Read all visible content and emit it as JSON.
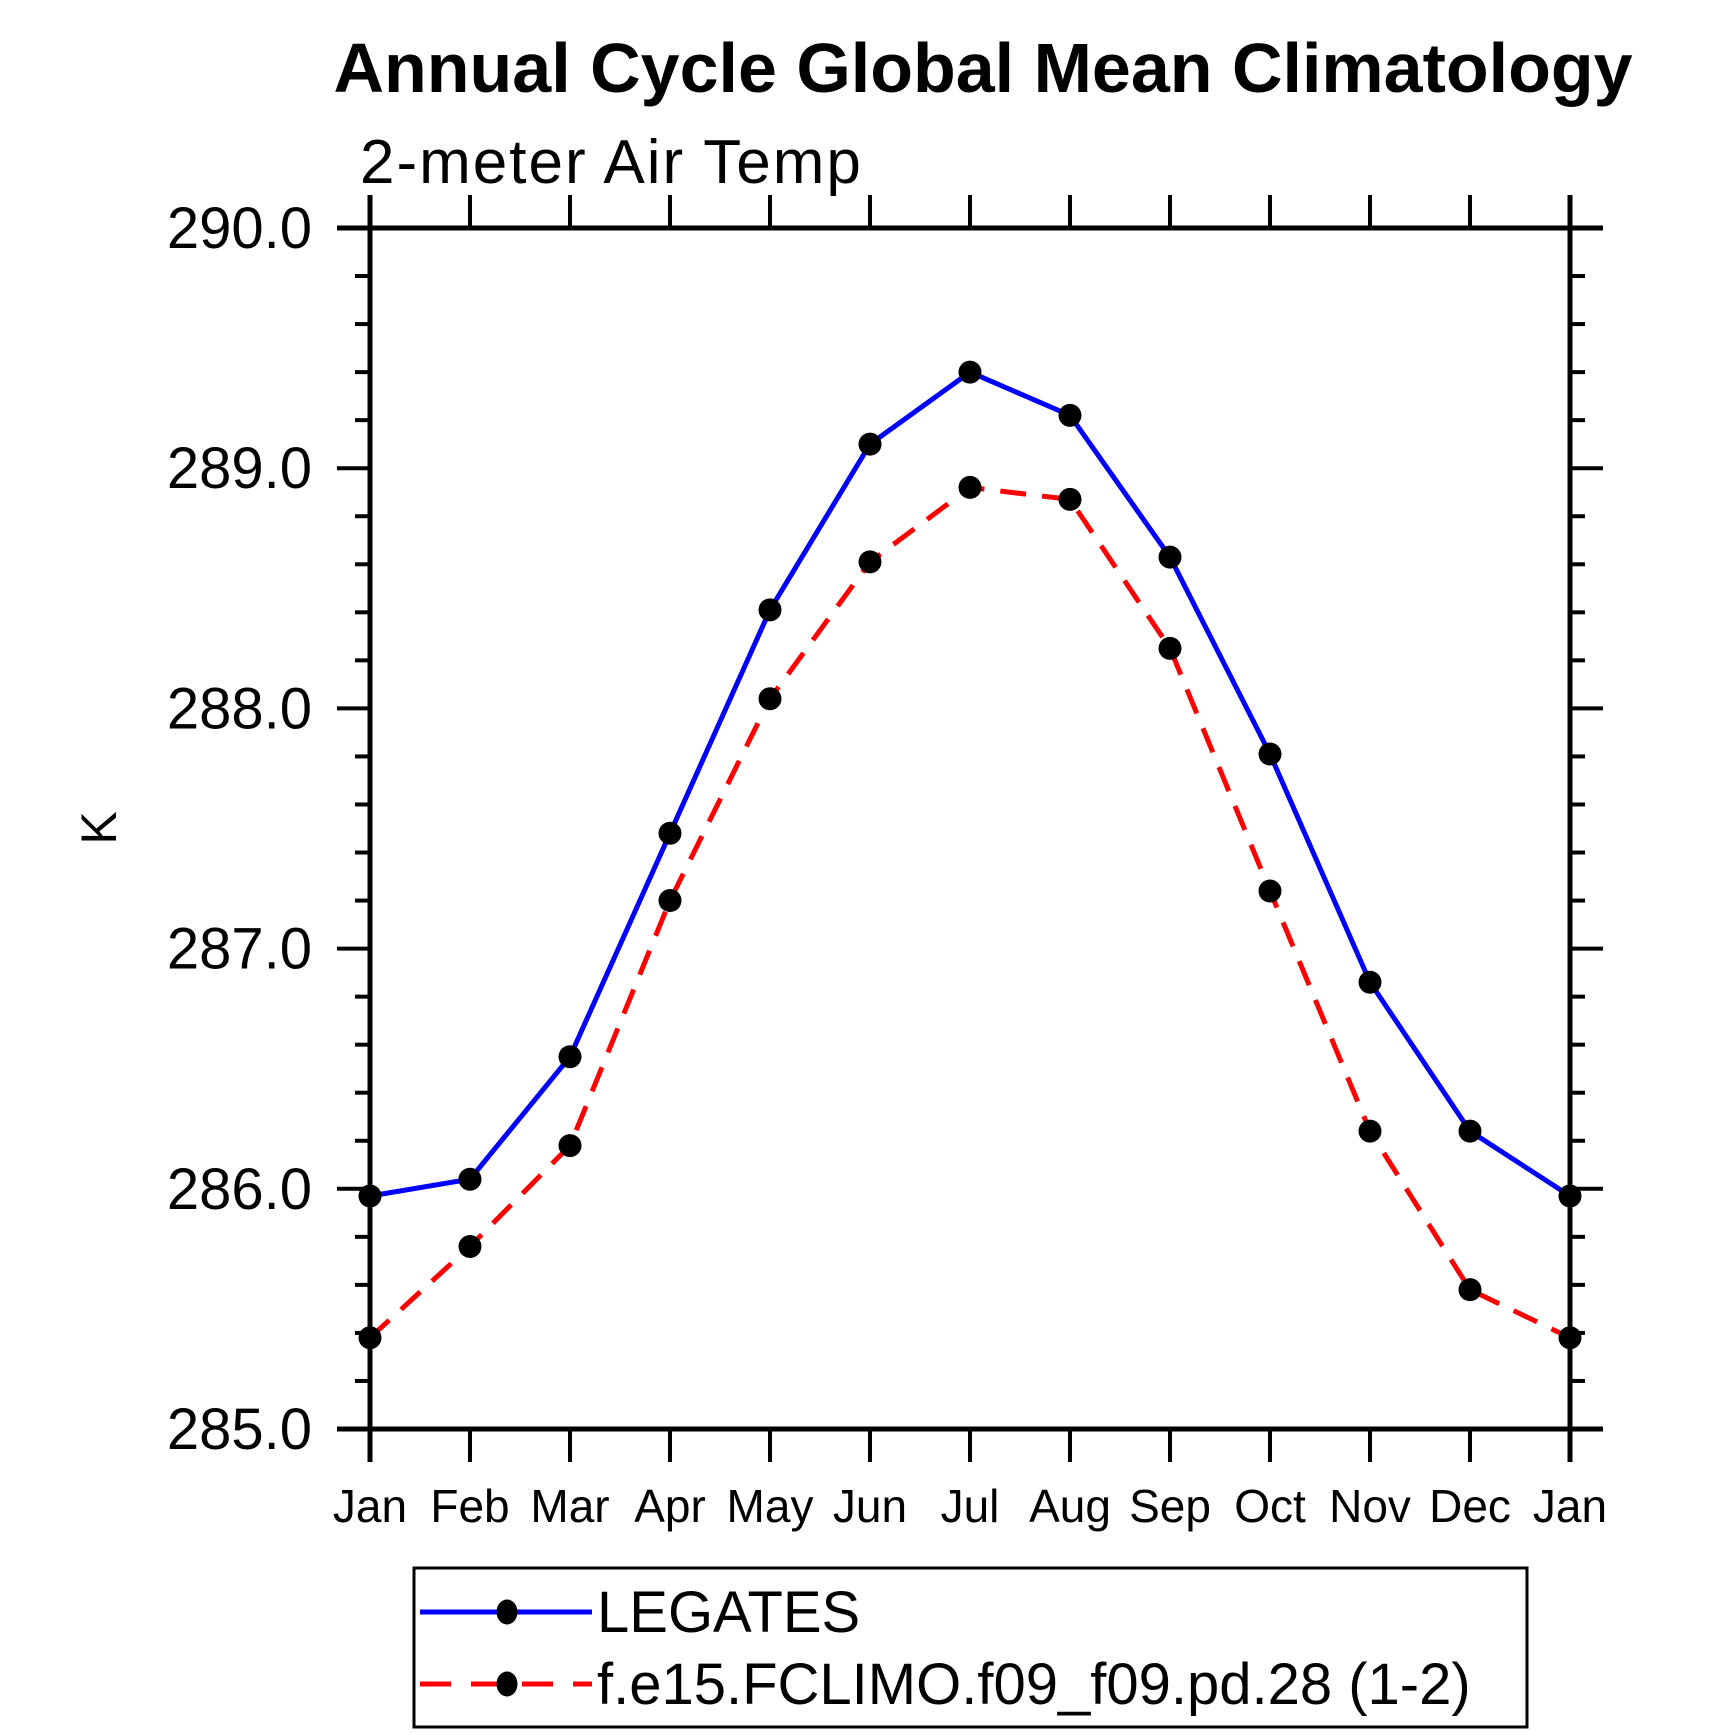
{
  "chart_data": {
    "type": "line",
    "title": "Annual Cycle Global Mean Climatology",
    "subtitle": "2-meter Air Temp",
    "ylabel": "K",
    "xlabel": "",
    "categories": [
      "Jan",
      "Feb",
      "Mar",
      "Apr",
      "May",
      "Jun",
      "Jul",
      "Aug",
      "Sep",
      "Oct",
      "Nov",
      "Dec",
      "Jan"
    ],
    "ylim": [
      285.0,
      290.0
    ],
    "ytick_major_labels": [
      "285.0",
      "286.0",
      "287.0",
      "288.0",
      "289.0",
      "290.0"
    ],
    "ytick_major_values": [
      285.0,
      286.0,
      287.0,
      288.0,
      289.0,
      290.0
    ],
    "ytick_minor_step": 0.2,
    "grid": false,
    "legend_position": "bottom",
    "marker_color": "#000000",
    "axis_color": "#000000",
    "series": [
      {
        "name": "LEGATES",
        "color": "#0000ff",
        "style": "solid",
        "marker": "circle",
        "values": [
          285.97,
          286.04,
          286.55,
          287.48,
          288.41,
          289.1,
          289.4,
          289.22,
          288.63,
          287.81,
          286.86,
          286.24,
          285.97
        ]
      },
      {
        "name": "f.e15.FCLIMO.f09_f09.pd.28 (1-2)",
        "color": "#ff0000",
        "style": "dashed",
        "marker": "circle",
        "values": [
          285.38,
          285.76,
          286.18,
          287.2,
          288.04,
          288.61,
          288.92,
          288.87,
          288.25,
          287.24,
          286.24,
          285.58,
          285.38
        ]
      }
    ]
  }
}
